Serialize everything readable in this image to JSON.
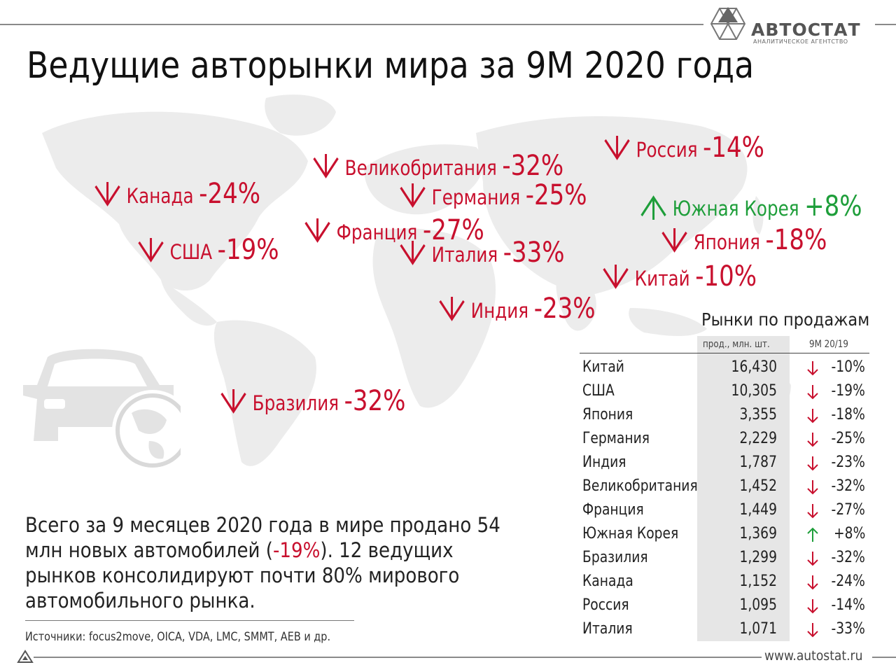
{
  "title": "Ведущие авторынки мира за 9М 2020 года",
  "logo": {
    "name": "АВТОСТАТ",
    "subtitle": "АНАЛИТИЧЕСКОЕ АГЕНТСТВО"
  },
  "colors": {
    "down": "#c8102e",
    "up": "#1e9e3a",
    "map": "#ececec"
  },
  "map_labels": [
    {
      "name": "Канада",
      "pct": "-24%",
      "dir": "down"
    },
    {
      "name": "США",
      "pct": "-19%",
      "dir": "down"
    },
    {
      "name": "Великобритания",
      "pct": "-32%",
      "dir": "down"
    },
    {
      "name": "Германия",
      "pct": "-25%",
      "dir": "down"
    },
    {
      "name": "Франция",
      "pct": "-27%",
      "dir": "down"
    },
    {
      "name": "Италия",
      "pct": "-33%",
      "dir": "down"
    },
    {
      "name": "Индия",
      "pct": "-23%",
      "dir": "down"
    },
    {
      "name": "Бразилия",
      "pct": "-32%",
      "dir": "down"
    },
    {
      "name": "Россия",
      "pct": "-14%",
      "dir": "down"
    },
    {
      "name": "Южная Корея",
      "pct": "+8%",
      "dir": "up"
    },
    {
      "name": "Япония",
      "pct": "-18%",
      "dir": "down"
    },
    {
      "name": "Китай",
      "pct": "-10%",
      "dir": "down"
    }
  ],
  "summary": {
    "part1": "Всего за 9 месяцев 2020 года в мире продано 54 млн новых автомобилей (",
    "highlight": "-19%",
    "part2": "). 12 ведущих рынков консолидируют почти 80% мирового автомобильного рынка."
  },
  "sources": "Источники: focus2move, OICA, VDA, LMC, SMMT, AEB и др.",
  "website": "www.autostat.ru",
  "table": {
    "title": "Рынки по продажам",
    "col_sales": "прод., млн. шт.",
    "col_change": "9М 20/19",
    "rows": [
      {
        "country": "Китай",
        "sales": "16,430",
        "change": "-10%",
        "dir": "down"
      },
      {
        "country": "США",
        "sales": "10,305",
        "change": "-19%",
        "dir": "down"
      },
      {
        "country": "Япония",
        "sales": "3,355",
        "change": "-18%",
        "dir": "down"
      },
      {
        "country": "Германия",
        "sales": "2,229",
        "change": "-25%",
        "dir": "down"
      },
      {
        "country": "Индия",
        "sales": "1,787",
        "change": "-23%",
        "dir": "down"
      },
      {
        "country": "Великобритания",
        "sales": "1,452",
        "change": "-32%",
        "dir": "down"
      },
      {
        "country": "Франция",
        "sales": "1,449",
        "change": "-27%",
        "dir": "down"
      },
      {
        "country": "Южная Корея",
        "sales": "1,369",
        "change": "+8%",
        "dir": "up"
      },
      {
        "country": "Бразилия",
        "sales": "1,299",
        "change": "-32%",
        "dir": "down"
      },
      {
        "country": "Канада",
        "sales": "1,152",
        "change": "-24%",
        "dir": "down"
      },
      {
        "country": "Россия",
        "sales": "1,095",
        "change": "-14%",
        "dir": "down"
      },
      {
        "country": "Италия",
        "sales": "1,071",
        "change": "-33%",
        "dir": "down"
      }
    ]
  }
}
